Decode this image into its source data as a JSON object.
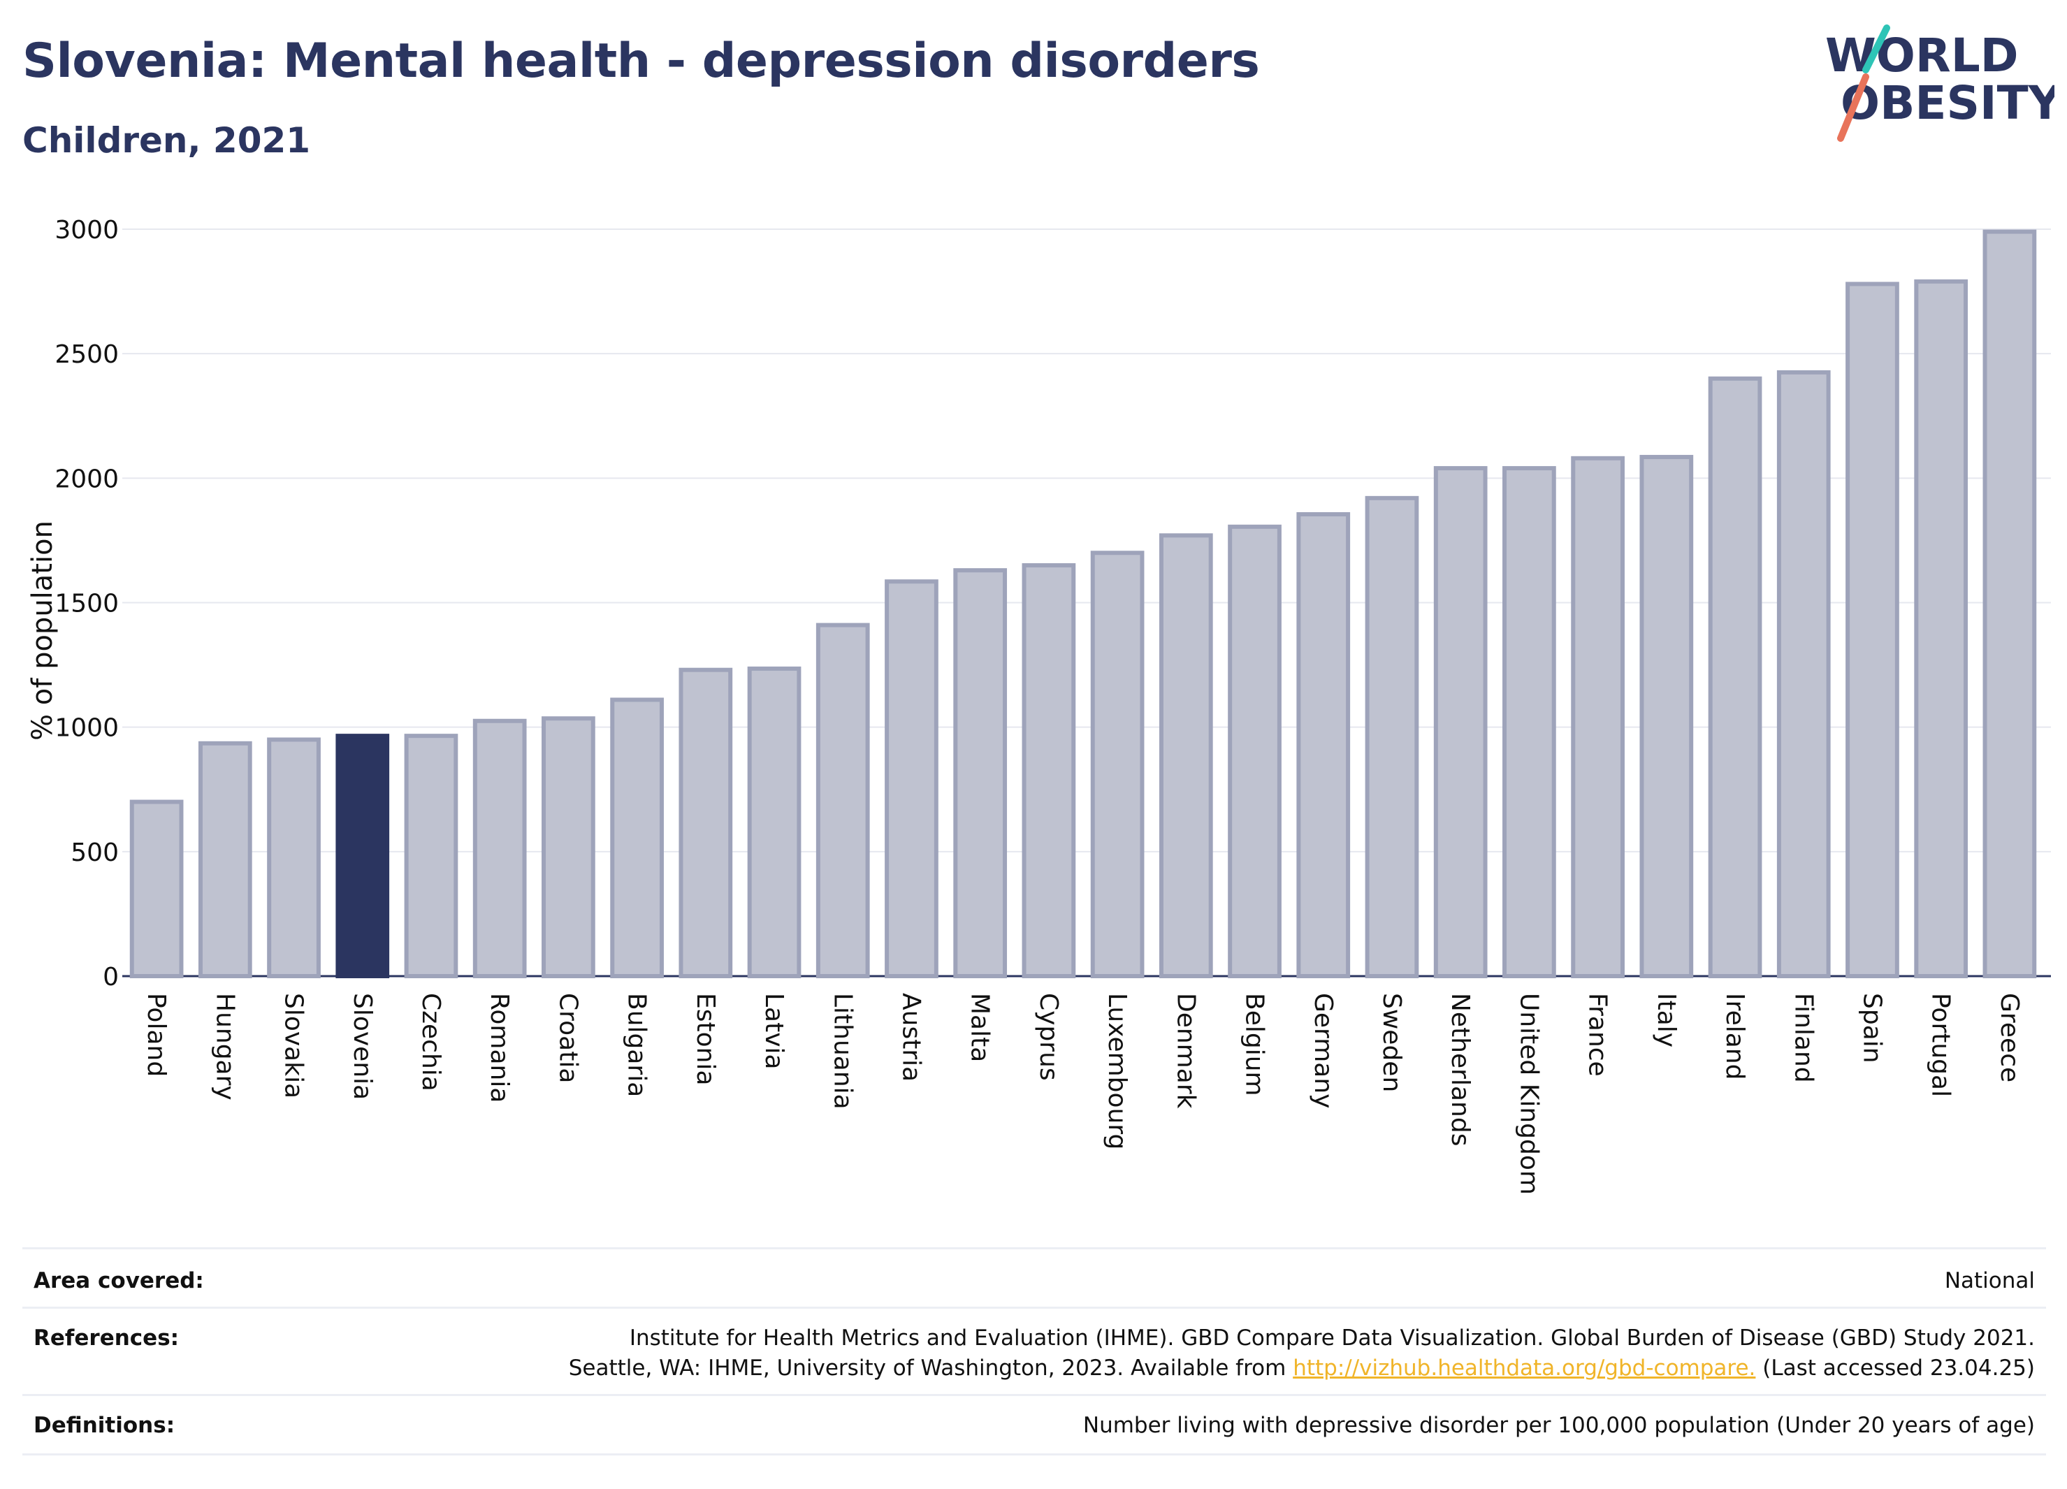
{
  "header": {
    "title": "Slovenia: Mental health - depression disorders",
    "subtitle": "Children, 2021"
  },
  "logo": {
    "line1": "WORLD",
    "line2": "OBESITY",
    "accent_colors": [
      "#2ec4b6",
      "#e8735a"
    ]
  },
  "chart_data": {
    "type": "bar",
    "ylabel": "% of population",
    "xlabel": "",
    "ylim": [
      0,
      3000
    ],
    "yticks": [
      0,
      500,
      1000,
      1500,
      2000,
      2500,
      3000
    ],
    "grid": true,
    "highlight": "Slovenia",
    "colors": {
      "bar": "#bfc2d0",
      "bar_edge": "#9ea3ba",
      "highlight": "#2b3560",
      "grid": "#e6e8ef"
    },
    "categories": [
      "Poland",
      "Hungary",
      "Slovakia",
      "Slovenia",
      "Czechia",
      "Romania",
      "Croatia",
      "Bulgaria",
      "Estonia",
      "Latvia",
      "Lithuania",
      "Austria",
      "Malta",
      "Cyprus",
      "Luxembourg",
      "Denmark",
      "Belgium",
      "Germany",
      "Sweden",
      "Netherlands",
      "United Kingdom",
      "France",
      "Italy",
      "Ireland",
      "Finland",
      "Spain",
      "Portugal",
      "Greece"
    ],
    "values": [
      700,
      935,
      950,
      965,
      965,
      1025,
      1035,
      1110,
      1230,
      1235,
      1410,
      1585,
      1630,
      1650,
      1700,
      1770,
      1805,
      1855,
      1920,
      2040,
      2040,
      2080,
      2085,
      2400,
      2425,
      2780,
      2790,
      2990
    ]
  },
  "footer": {
    "area_label": "Area covered:",
    "area_value": "National",
    "references_label": "References:",
    "references_line1": "Institute for Health Metrics and Evaluation (IHME). GBD Compare Data Visualization. Global Burden of Disease (GBD) Study 2021.",
    "references_line2_pre": "Seattle, WA: IHME, University of Washington, 2023. Available from ",
    "references_link": "http://vizhub.healthdata.org/gbd-compare.",
    "references_line2_post": " (Last accessed 23.04.25)",
    "definitions_label": "Definitions:",
    "definitions_value": "Number living with depressive disorder per 100,000 population (Under 20 years of age)"
  }
}
